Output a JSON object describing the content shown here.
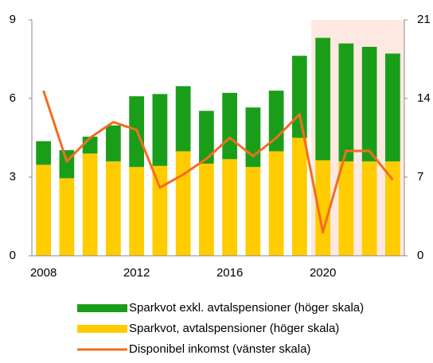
{
  "chart_data": {
    "type": "bar",
    "categories": [
      "2008",
      null,
      null,
      null,
      "2012",
      null,
      null,
      null,
      "2016",
      null,
      null,
      null,
      "2020",
      null,
      null,
      null
    ],
    "series": [
      {
        "name": "Sparkvot, avtalspensioner (höger skala)",
        "color": "#ffcc00",
        "axis": "y2",
        "stack": true,
        "values": [
          8.1,
          6.9,
          9.1,
          8.4,
          7.9,
          8.0,
          9.3,
          8.2,
          8.6,
          7.9,
          9.3,
          10.5,
          8.5,
          8.4,
          8.4,
          8.4
        ]
      },
      {
        "name": "Sparkvot exkl. avtalspensioner (höger skala)",
        "color": "#1a9e1a",
        "axis": "y2",
        "stack": true,
        "values": [
          2.1,
          2.5,
          1.5,
          3.2,
          6.3,
          6.4,
          5.8,
          4.7,
          5.9,
          5.3,
          5.4,
          7.3,
          10.9,
          10.5,
          10.2,
          9.6
        ]
      },
      {
        "name": "Disponibel inkomst (vänster skala)",
        "color": "#f26d21",
        "type": "line",
        "values": [
          6.3,
          3.6,
          4.5,
          5.1,
          4.8,
          2.6,
          3.1,
          3.7,
          4.5,
          3.8,
          4.5,
          5.4,
          0.9,
          4.0,
          4.0,
          2.9
        ]
      }
    ],
    "ylim": [
      0,
      9
    ],
    "yticks": [
      0,
      3,
      6,
      9
    ],
    "y2lim": [
      0,
      21
    ],
    "y2ticks": [
      0,
      7,
      14,
      21
    ],
    "legend_order": [
      1,
      0,
      2
    ]
  }
}
